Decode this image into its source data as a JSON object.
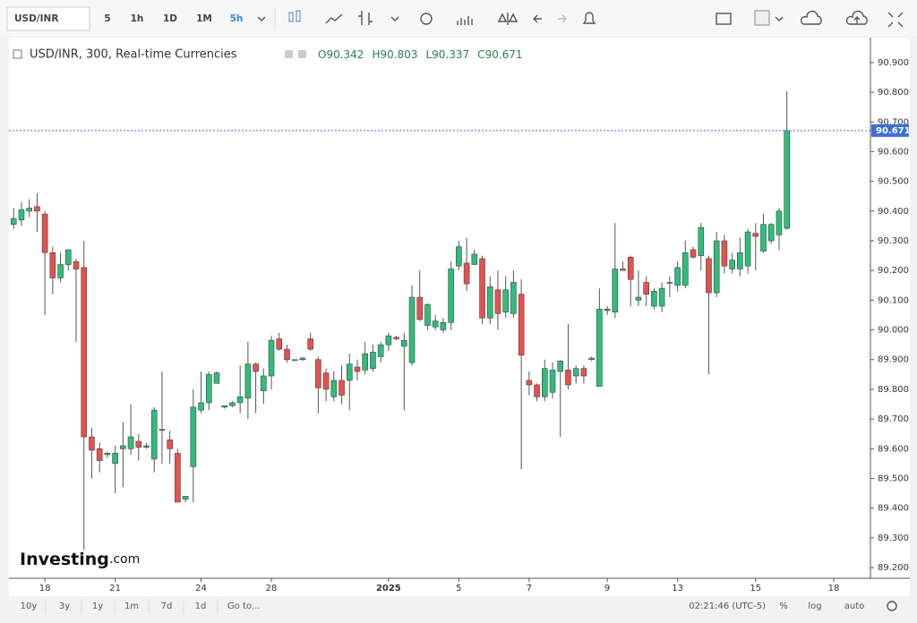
{
  "toolbar": {
    "symbol": "USD/INR",
    "intervals": [
      "5",
      "1h",
      "1D",
      "1M",
      "5h"
    ]
  },
  "bottom_bar": {
    "ranges": [
      "10y",
      "3y",
      "1y",
      "1m",
      "7d",
      "1d"
    ],
    "goto": "Go to...",
    "clock": "02:21:46 (UTC-5)",
    "options": [
      "%",
      "log",
      "auto"
    ]
  },
  "watermark": {
    "brand": "Investing",
    "suffix": ".com"
  },
  "chart_data": {
    "type": "candlestick",
    "title": "USD/INR, 300, Real-time Currencies",
    "ohlc_keys": [
      "O",
      "H",
      "L",
      "C"
    ],
    "series": [
      {
        "name": "USD/INR",
        "up_color": "#2ebd7a",
        "down_color": "#e5514f",
        "open": [
          90.355,
          90.37,
          90.4,
          90.415,
          90.39,
          90.26,
          90.175,
          90.22,
          90.23,
          90.21,
          89.64,
          89.6,
          89.58,
          89.55,
          89.6,
          89.6,
          89.625,
          89.605,
          89.565,
          89.665,
          89.63,
          89.585,
          89.43,
          89.54,
          89.73,
          89.755,
          89.82,
          89.74,
          89.745,
          89.755,
          89.77,
          89.885,
          89.795,
          89.845,
          89.97,
          89.935,
          89.9,
          89.9,
          89.97,
          89.9,
          89.855,
          89.775,
          89.83,
          89.83,
          89.875,
          89.865,
          89.87,
          89.91,
          89.95,
          89.975,
          89.945,
          89.89,
          90.11,
          90.015,
          90.01,
          90.0,
          90.025,
          90.215,
          90.225,
          90.22,
          90.24,
          90.04,
          90.135,
          90.06,
          90.055,
          90.12,
          89.83,
          89.815,
          89.775,
          89.79,
          89.86,
          89.865,
          89.845,
          89.87,
          89.9,
          89.81,
          90.065,
          90.06,
          90.205,
          90.245,
          90.1,
          90.16,
          90.08,
          90.08,
          90.16,
          90.15,
          90.15,
          90.27,
          90.25,
          90.24,
          90.125,
          90.3,
          90.205,
          90.205,
          90.215,
          90.325,
          90.265,
          90.3,
          90.32,
          90.342
        ],
        "high": [
          90.41,
          90.43,
          90.44,
          90.46,
          90.4,
          90.28,
          90.26,
          90.27,
          90.24,
          90.3,
          89.67,
          89.62,
          89.59,
          89.61,
          89.69,
          89.75,
          89.65,
          89.62,
          89.74,
          89.86,
          89.66,
          89.6,
          89.44,
          89.8,
          89.86,
          89.86,
          89.86,
          89.745,
          89.76,
          89.88,
          89.96,
          89.89,
          89.87,
          89.98,
          89.99,
          89.95,
          89.9,
          89.91,
          89.99,
          89.91,
          89.87,
          89.86,
          89.88,
          89.92,
          89.9,
          89.96,
          89.95,
          89.96,
          89.99,
          89.98,
          89.99,
          90.15,
          90.2,
          90.09,
          90.05,
          90.04,
          90.23,
          90.3,
          90.31,
          90.27,
          90.25,
          90.18,
          90.2,
          90.18,
          90.2,
          90.17,
          89.86,
          89.82,
          89.9,
          89.89,
          89.9,
          90.02,
          89.88,
          89.88,
          89.91,
          90.14,
          90.08,
          90.36,
          90.23,
          90.25,
          90.2,
          90.18,
          90.14,
          90.16,
          90.18,
          90.23,
          90.3,
          90.28,
          90.36,
          90.25,
          90.33,
          90.32,
          90.26,
          90.31,
          90.34,
          90.36,
          90.39,
          90.36,
          90.41,
          90.803
        ],
        "low": [
          90.34,
          90.35,
          90.38,
          90.33,
          90.05,
          90.12,
          90.16,
          90.2,
          89.96,
          89.26,
          89.5,
          89.52,
          89.57,
          89.45,
          89.47,
          89.58,
          89.56,
          89.6,
          89.52,
          89.55,
          89.55,
          89.42,
          89.42,
          89.42,
          89.72,
          89.73,
          89.82,
          89.735,
          89.74,
          89.72,
          89.7,
          89.72,
          89.75,
          89.8,
          89.93,
          89.89,
          89.895,
          89.895,
          89.93,
          89.72,
          89.76,
          89.76,
          89.75,
          89.73,
          89.83,
          89.85,
          89.86,
          89.89,
          89.93,
          89.965,
          89.73,
          89.88,
          90.03,
          90.0,
          90.0,
          89.99,
          90.0,
          90.2,
          90.13,
          90.22,
          90.02,
          90.02,
          90.0,
          90.04,
          90.04,
          89.53,
          89.78,
          89.76,
          89.76,
          89.77,
          89.64,
          89.8,
          89.82,
          89.82,
          89.895,
          89.81,
          90.05,
          90.04,
          90.2,
          90.08,
          90.08,
          90.08,
          90.07,
          90.06,
          90.11,
          90.13,
          90.14,
          90.24,
          90.2,
          89.85,
          90.11,
          90.19,
          90.19,
          90.18,
          90.19,
          90.2,
          90.26,
          90.29,
          90.27,
          90.337
        ],
        "close": [
          90.375,
          90.405,
          90.41,
          90.4,
          90.26,
          90.175,
          90.22,
          90.27,
          90.205,
          89.64,
          89.595,
          89.56,
          89.585,
          89.585,
          89.61,
          89.64,
          89.605,
          89.61,
          89.73,
          89.665,
          89.6,
          89.42,
          89.44,
          89.74,
          89.755,
          89.85,
          89.855,
          89.745,
          89.755,
          89.775,
          89.885,
          89.86,
          89.845,
          89.965,
          89.935,
          89.9,
          89.9,
          89.905,
          89.935,
          89.805,
          89.8,
          89.83,
          89.78,
          89.885,
          89.86,
          89.92,
          89.925,
          89.95,
          89.98,
          89.97,
          89.965,
          90.11,
          90.035,
          90.085,
          90.03,
          90.025,
          90.205,
          90.28,
          90.155,
          90.255,
          90.04,
          90.145,
          90.055,
          90.135,
          90.16,
          89.915,
          89.815,
          89.775,
          89.87,
          89.865,
          89.895,
          89.815,
          89.87,
          89.845,
          89.905,
          90.07,
          90.07,
          90.205,
          90.2,
          90.17,
          90.11,
          90.12,
          90.13,
          90.14,
          90.16,
          90.21,
          90.26,
          90.245,
          90.345,
          90.125,
          90.3,
          90.215,
          90.235,
          90.26,
          90.33,
          90.315,
          90.355,
          90.355,
          90.4,
          90.671
        ]
      }
    ],
    "xlim": [
      -0.6,
      109.7
    ],
    "xticks": [
      {
        "value": 4,
        "label": "18"
      },
      {
        "value": 13,
        "label": "21"
      },
      {
        "value": 24,
        "label": "24"
      },
      {
        "value": 33,
        "label": "28"
      },
      {
        "value": 48,
        "label": "2025"
      },
      {
        "value": 57,
        "label": "5"
      },
      {
        "value": 66,
        "label": "7"
      },
      {
        "value": 76,
        "label": "9"
      },
      {
        "value": 85,
        "label": "13"
      },
      {
        "value": 95,
        "label": "15"
      },
      {
        "value": 105,
        "label": "18"
      }
    ],
    "ylim": [
      89.164,
      90.984
    ],
    "yticks": [
      {
        "value": 89.2,
        "label": "89.200"
      },
      {
        "value": 89.3,
        "label": "89.300"
      },
      {
        "value": 89.4,
        "label": "89.400"
      },
      {
        "value": 89.5,
        "label": "89.500"
      },
      {
        "value": 89.6,
        "label": "89.600"
      },
      {
        "value": 89.7,
        "label": "89.700"
      },
      {
        "value": 89.8,
        "label": "89.800"
      },
      {
        "value": 89.9,
        "label": "89.900"
      },
      {
        "value": 90.0,
        "label": "90.000"
      },
      {
        "value": 90.1,
        "label": "90.100"
      },
      {
        "value": 90.2,
        "label": "90.200"
      },
      {
        "value": 90.3,
        "label": "90.300"
      },
      {
        "value": 90.4,
        "label": "90.400"
      },
      {
        "value": 90.5,
        "label": "90.500"
      },
      {
        "value": 90.6,
        "label": "90.600"
      },
      {
        "value": 90.7,
        "label": "90.700"
      },
      {
        "value": 90.8,
        "label": "90.800"
      },
      {
        "value": 90.9,
        "label": "90.900"
      }
    ],
    "price_line_color": "#3d6fd8"
  }
}
